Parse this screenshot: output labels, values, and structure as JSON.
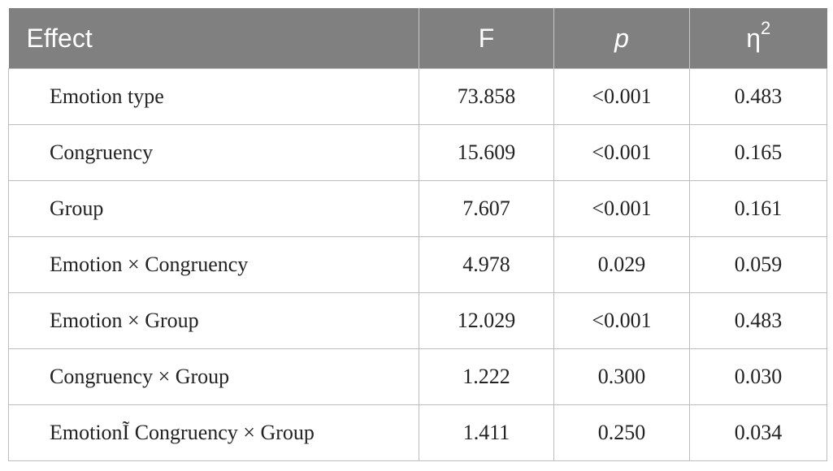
{
  "table": {
    "headers": {
      "effect": "Effect",
      "f": "F",
      "p": "p",
      "eta_symbol": "η",
      "eta_superscript": "2"
    },
    "rows": [
      {
        "effect": "Emotion type",
        "f": "73.858",
        "p": "<0.001",
        "eta2": "0.483"
      },
      {
        "effect": "Congruency",
        "f": "15.609",
        "p": "<0.001",
        "eta2": "0.165"
      },
      {
        "effect": "Group",
        "f": "7.607",
        "p": "<0.001",
        "eta2": "0.161"
      },
      {
        "effect": "Emotion × Congruency",
        "f": "4.978",
        "p": "0.029",
        "eta2": "0.059"
      },
      {
        "effect": "Emotion × Group",
        "f": "12.029",
        "p": "<0.001",
        "eta2": "0.483"
      },
      {
        "effect": "Congruency × Group",
        "f": "1.222",
        "p": "0.300",
        "eta2": "0.030"
      },
      {
        "effect": "EmotionĨ Congruency × Group",
        "f": "1.411",
        "p": "0.250",
        "eta2": "0.034"
      }
    ],
    "colors": {
      "header_background": "#808080",
      "header_text": "#ffffff",
      "grid_lines": "#bdbdbd",
      "body_text": "#222222"
    }
  }
}
